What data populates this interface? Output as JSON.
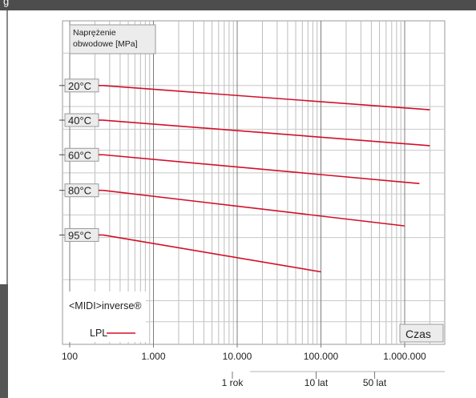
{
  "header": {
    "title": "g"
  },
  "chart_data": {
    "type": "line",
    "x_scale": "log",
    "x_ticks": [
      100,
      1000,
      10000,
      100000,
      1000000
    ],
    "x_tick_labels": [
      "100",
      "1.000",
      "10.000",
      "100.000",
      "1.000.000"
    ],
    "xlim": [
      100,
      2000000
    ],
    "xlabel": "Czas",
    "ylabel": "Naprężenie obwodowe [MPa]",
    "secondary_x_ticks": [
      {
        "label": "1 rok",
        "x": 8760
      },
      {
        "label": "10 lat",
        "x": 87600
      },
      {
        "label": "50 lat",
        "x": 438000
      }
    ],
    "legend": {
      "title": "<MIDI>inverse®",
      "entries": [
        {
          "label": "LPL",
          "color": "#d0102a"
        }
      ],
      "position": "bottom-left"
    },
    "grid": true,
    "series": [
      {
        "name": "20°C",
        "color": "#d0102a",
        "x": [
          250,
          2000000
        ],
        "y": [
          0.8,
          0.725
        ]
      },
      {
        "name": "40°C",
        "color": "#d0102a",
        "x": [
          250,
          2000000
        ],
        "y": [
          0.693,
          0.614
        ]
      },
      {
        "name": "60°C",
        "color": "#d0102a",
        "x": [
          250,
          1500000
        ],
        "y": [
          0.586,
          0.497
        ]
      },
      {
        "name": "80°C",
        "color": "#d0102a",
        "x": [
          250,
          1000000
        ],
        "y": [
          0.476,
          0.366
        ]
      },
      {
        "name": "95°C",
        "color": "#d0102a",
        "x": [
          250,
          100000
        ],
        "y": [
          0.338,
          0.224
        ]
      }
    ]
  }
}
